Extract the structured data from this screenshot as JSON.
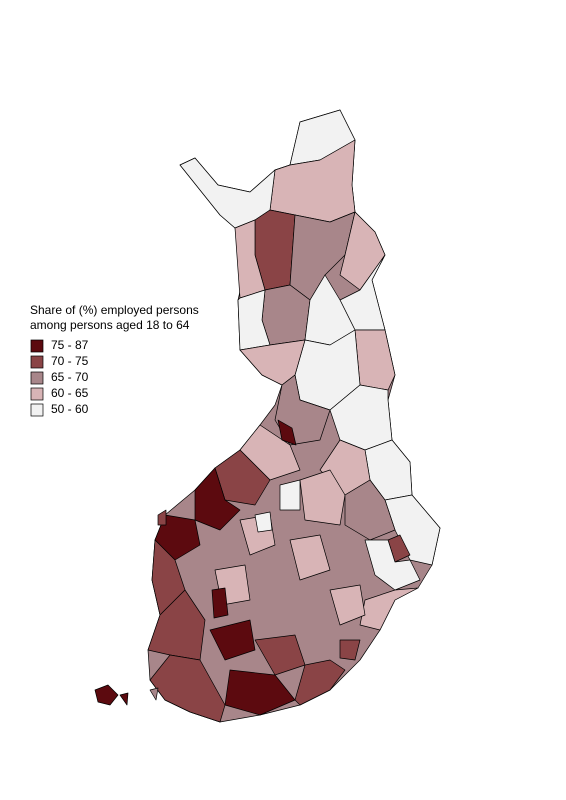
{
  "legend": {
    "title_lines": [
      "Share of (%) employed persons",
      "among persons aged 18 to 64"
    ],
    "items": [
      {
        "label": "75 - 87",
        "color": "#5c0a0f"
      },
      {
        "label": "70 - 75",
        "color": "#8a4446"
      },
      {
        "label": "65 - 70",
        "color": "#a8868a"
      },
      {
        "label": "60 - 65",
        "color": "#d8b4b6"
      },
      {
        "label": "50 - 60",
        "color": "#f2f2f2"
      }
    ]
  }
}
